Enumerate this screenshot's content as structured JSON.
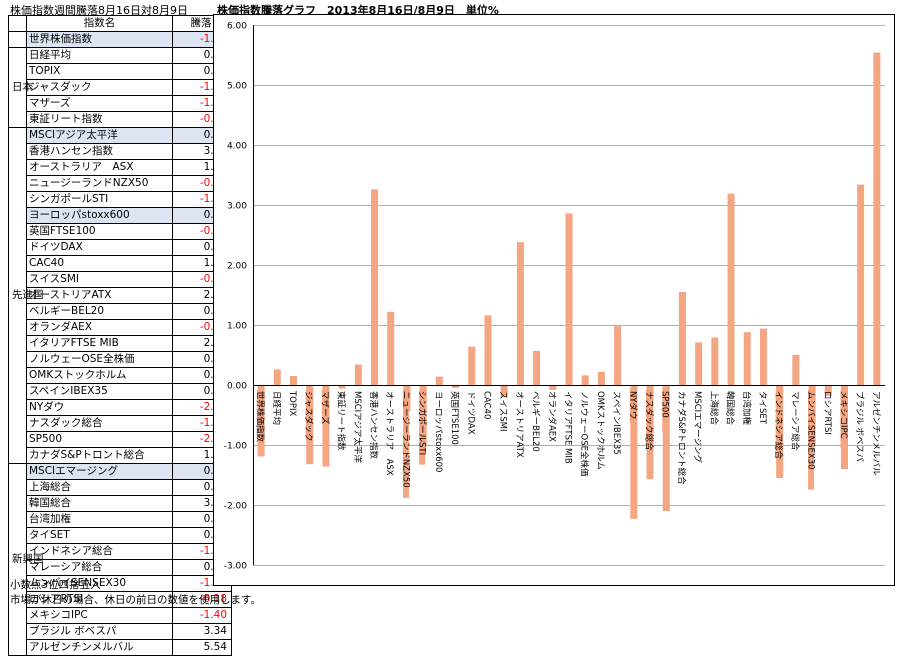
{
  "table": {
    "title": "株価指数週間騰落8月16日対8月9日",
    "header_name": "指数名",
    "header_value": "騰落",
    "groups": [
      {
        "label": "",
        "rows": [
          {
            "name": "世界株価指数",
            "value": "-1.19",
            "hl": true
          }
        ]
      },
      {
        "label": "日本",
        "rows": [
          {
            "name": "日経平均",
            "value": "0.26",
            "hl": false
          },
          {
            "name": "TOPIX",
            "value": "0.15",
            "hl": false
          },
          {
            "name": "ジャスダック",
            "value": "-1.32",
            "hl": false
          },
          {
            "name": "マザーズ",
            "value": "-1.36",
            "hl": false
          },
          {
            "name": "東証リート指数",
            "value": "-0.06",
            "hl": false
          }
        ]
      },
      {
        "label": "先進国",
        "rows": [
          {
            "name": "MSCIアジア太平洋",
            "value": "0.34",
            "hl": true
          },
          {
            "name": "香港ハンセン指数",
            "value": "3.26",
            "hl": false
          },
          {
            "name": "オーストラリア　ASX",
            "value": "1.22",
            "hl": false
          },
          {
            "name": "ニュージーランドNZX50",
            "value": "-0.44",
            "hl": false
          },
          {
            "name": "シンガポールSTI",
            "value": "-1.00",
            "hl": false
          },
          {
            "name": "ヨーロッパstoxx600",
            "value": "0.14",
            "hl": true
          },
          {
            "name": "英国FTSE100",
            "value": "-0.05",
            "hl": false
          },
          {
            "name": "ドイツDAX",
            "value": "0.64",
            "hl": false
          },
          {
            "name": "CAC40",
            "value": "1.16",
            "hl": false
          },
          {
            "name": "スイスSMI",
            "value": "-0.20",
            "hl": false
          },
          {
            "name": "オーストリアATX",
            "value": "2.38",
            "hl": false
          },
          {
            "name": "ベルギーBEL20",
            "value": "0.57",
            "hl": false
          },
          {
            "name": "オランダAEX",
            "value": "-0.08",
            "hl": false
          },
          {
            "name": "イタリアFTSE MIB",
            "value": "2.86",
            "hl": false
          },
          {
            "name": "ノルウェーOSE全株価",
            "value": "0.16",
            "hl": false
          },
          {
            "name": "OMKストックホルム",
            "value": "0.22",
            "hl": false
          },
          {
            "name": "スペインIBEX35",
            "value": "0.98",
            "hl": false
          },
          {
            "name": "NYダウ",
            "value": "-2.23",
            "hl": false
          },
          {
            "name": "ナスダック総合",
            "value": "-1.57",
            "hl": false
          },
          {
            "name": "SP500",
            "value": "-2.10",
            "hl": false
          },
          {
            "name": "カナダS&Pトロント総合",
            "value": "1.55",
            "hl": false
          }
        ]
      },
      {
        "label": "新興国",
        "rows": [
          {
            "name": "MSCIエマージング",
            "value": "0.71",
            "hl": true
          },
          {
            "name": "上海総合",
            "value": "0.79",
            "hl": false
          },
          {
            "name": "韓国総合",
            "value": "3.19",
            "hl": false
          },
          {
            "name": "台湾加権",
            "value": "0.88",
            "hl": false
          },
          {
            "name": "タイSET",
            "value": "0.94",
            "hl": false
          },
          {
            "name": "インドネシア総合",
            "value": "-1.55",
            "hl": false
          },
          {
            "name": "マレーシア総合",
            "value": "0.50",
            "hl": false
          },
          {
            "name": "ムンバイSENSEX30",
            "value": "-1.02",
            "hl": false
          },
          {
            "name": "ロシアRTSI",
            "value": "-0.18",
            "hl": false
          },
          {
            "name": "メキシコIPC",
            "value": "-1.40",
            "hl": false
          },
          {
            "name": "ブラジル ボベスパ",
            "value": "3.34",
            "hl": false
          },
          {
            "name": "アルゼンチンメルバル",
            "value": "5.54",
            "hl": false
          }
        ]
      }
    ]
  },
  "notes": {
    "rounding": "小数点3位四捨五入",
    "holiday": "市場が休日の場合、休日の前日の数値を使用します。"
  },
  "chart_data": {
    "type": "bar",
    "title": "株価指数騰落グラフ　2013年8月16日/8月9日　単位%",
    "xlabel": "",
    "ylabel": "",
    "ylim": [
      -3.0,
      6.0
    ],
    "ytick_step": 1.0,
    "grid": "horizontal",
    "bar_color": "#f4a582",
    "categories": [
      "世界株価指数",
      "日経平均",
      "TOPIX",
      "ジャスダック",
      "マザーズ",
      "東証リート指数",
      "MSCIアジア太平洋",
      "香港ハンセン指数",
      "オーストラリア　ASX",
      "ニュージーランドNZX50",
      "シンガポールSTI",
      "ヨーロッパstoxx600",
      "英国FTSE100",
      "ドイツDAX",
      "CAC40",
      "スイスSMI",
      "オーストリアATX",
      "ベルギーBEL20",
      "オランダAEX",
      "イタリアFTSE MIB",
      "ノルウェーOSE全株価",
      "OMKストックホルム",
      "スペインIBEX35",
      "NYダウ",
      "ナスダック総合",
      "SP500",
      "カナダS&Pトロント総合",
      "MSCIエマージング",
      "上海総合",
      "韓国総合",
      "台湾加権",
      "タイSET",
      "インドネシア総合",
      "マレーシア総合",
      "ムンバイSENSEX30",
      "ロシアRTSI",
      "メキシコIPC",
      "ブラジル ボベスパ",
      "アルゼンチンメルバル"
    ],
    "values": [
      -1.19,
      0.26,
      0.15,
      -1.32,
      -1.36,
      -0.06,
      0.34,
      3.26,
      1.22,
      -0.44,
      -1.0,
      0.14,
      -0.05,
      0.64,
      1.16,
      -0.2,
      2.38,
      0.57,
      -0.08,
      2.86,
      0.16,
      0.22,
      0.98,
      -2.23,
      -1.57,
      -2.1,
      1.55,
      0.71,
      0.79,
      3.19,
      0.88,
      0.94,
      -1.55,
      0.5,
      -1.02,
      -0.18,
      -1.4,
      3.34,
      5.54
    ],
    "label_highlight": [
      true,
      false,
      false,
      true,
      true,
      false,
      false,
      false,
      false,
      true,
      true,
      false,
      false,
      false,
      false,
      false,
      false,
      false,
      false,
      false,
      false,
      false,
      false,
      true,
      true,
      true,
      false,
      false,
      false,
      false,
      false,
      false,
      true,
      false,
      true,
      false,
      true,
      false,
      false
    ]
  }
}
